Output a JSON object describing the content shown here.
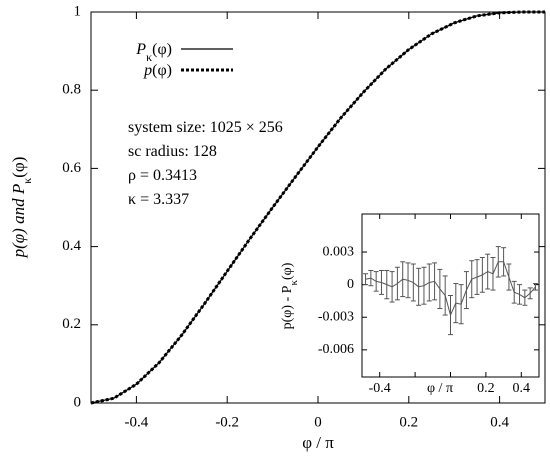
{
  "chart_data": [
    {
      "type": "line",
      "title": "",
      "xlabel": "φ / π",
      "ylabel_html": [
        "p(φ) and ",
        "P",
        "κ",
        "(φ)"
      ],
      "xlim": [
        -0.5,
        0.5
      ],
      "ylim": [
        0,
        1
      ],
      "xticks": [
        -0.4,
        -0.2,
        0,
        0.2,
        0.4
      ],
      "xtick_labels": [
        "-0.4",
        "-0.2",
        "0",
        "0.2",
        "0.4"
      ],
      "yticks": [
        0,
        0.2,
        0.4,
        0.6,
        0.8,
        1
      ],
      "ytick_labels": [
        "0",
        "0.2",
        "0.4",
        "0.6",
        "0.8",
        "1"
      ],
      "grid": false,
      "legend_placement": "top-left",
      "legend": [
        {
          "main": "P",
          "sub": "κ",
          "rest": "(φ)",
          "style": "solid"
        },
        {
          "main": "p",
          "sub": "",
          "rest": "(φ)",
          "style": "dotted"
        }
      ],
      "series": [
        {
          "style": "solid",
          "x": [
            -0.5,
            -0.45,
            -0.4,
            -0.35,
            -0.3,
            -0.25,
            -0.2,
            -0.15,
            -0.1,
            -0.05,
            0,
            0.05,
            0.1,
            0.15,
            0.2,
            0.25,
            0.3,
            0.35,
            0.4,
            0.45,
            0.5
          ],
          "y": [
            0,
            0.012,
            0.048,
            0.103,
            0.174,
            0.254,
            0.337,
            0.42,
            0.5,
            0.578,
            0.655,
            0.729,
            0.795,
            0.855,
            0.904,
            0.944,
            0.972,
            0.99,
            0.998,
            1.0,
            1.0
          ]
        },
        {
          "style": "dotted",
          "x": [
            -0.5,
            -0.45,
            -0.4,
            -0.35,
            -0.3,
            -0.25,
            -0.2,
            -0.15,
            -0.1,
            -0.05,
            0,
            0.05,
            0.1,
            0.15,
            0.2,
            0.25,
            0.3,
            0.35,
            0.4,
            0.45,
            0.5
          ],
          "y": [
            0,
            0.012,
            0.048,
            0.103,
            0.174,
            0.254,
            0.337,
            0.42,
            0.5,
            0.578,
            0.655,
            0.729,
            0.795,
            0.855,
            0.904,
            0.944,
            0.972,
            0.99,
            0.998,
            1.0,
            1.0
          ]
        }
      ],
      "annotations": [
        "system size: 1025 × 256",
        "sc radius: 128",
        "ρ = 0.3413",
        "κ = 3.337"
      ]
    },
    {
      "type": "scatter",
      "role": "inset",
      "title": "",
      "xlabel": "φ / π",
      "ylabel_parts": [
        "p(φ) - P",
        "κ",
        "(φ)"
      ],
      "xlim": [
        -0.5,
        0.5
      ],
      "ylim": [
        -0.0085,
        0.0065
      ],
      "xticks": [
        -0.4,
        0.2,
        0.4
      ],
      "xtick_labels": [
        "-0.4",
        "0.2",
        "0.4"
      ],
      "xticks_minor": [
        -0.2,
        0
      ],
      "yticks": [
        0.003,
        0,
        -0.003,
        -0.006
      ],
      "ytick_labels": [
        "0.003",
        "0",
        "-0.003",
        "-0.006"
      ],
      "grid": false,
      "series": [
        {
          "x": [
            -0.48,
            -0.45,
            -0.42,
            -0.39,
            -0.36,
            -0.33,
            -0.3,
            -0.27,
            -0.24,
            -0.21,
            -0.18,
            -0.15,
            -0.12,
            -0.09,
            -0.06,
            -0.03,
            0.0,
            0.03,
            0.06,
            0.09,
            0.12,
            0.15,
            0.18,
            0.21,
            0.24,
            0.27,
            0.3,
            0.33,
            0.36,
            0.39,
            0.42,
            0.45,
            0.48
          ],
          "y": [
            0.0005,
            0.0006,
            0.0003,
            0.0002,
            0.0,
            -0.0002,
            0.0001,
            0.0005,
            0.0004,
            0.0002,
            -0.0002,
            -0.0001,
            0.0002,
            0.0003,
            -0.0004,
            -0.001,
            -0.0028,
            -0.0017,
            -0.0018,
            -0.0005,
            0.0005,
            0.0007,
            0.0009,
            0.0012,
            0.001,
            0.0021,
            0.0021,
            0.0007,
            -0.0007,
            -0.0009,
            -0.0012,
            -0.0008,
            -0.0002
          ],
          "err": [
            0.0005,
            0.0007,
            0.0009,
            0.0011,
            0.0013,
            0.0014,
            0.0015,
            0.0016,
            0.0016,
            0.0017,
            0.0017,
            0.0017,
            0.0017,
            0.0017,
            0.0018,
            0.0018,
            0.0018,
            0.0018,
            0.0018,
            0.0017,
            0.0017,
            0.0016,
            0.0016,
            0.0016,
            0.0015,
            0.0014,
            0.0013,
            0.0012,
            0.001,
            0.0009,
            0.0007,
            0.0005,
            0.0003
          ]
        }
      ]
    }
  ]
}
